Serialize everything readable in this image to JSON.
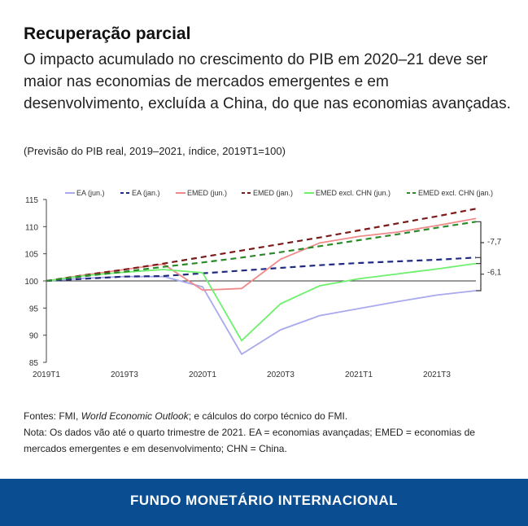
{
  "header": {
    "title": "Recuperação parcial",
    "subtitle": "O impacto acumulado no crescimento do PIB em 2020–21 deve ser maior nas economias de mercados emergentes e em desenvolvimento, excluída a China, do que nas economias avançadas.",
    "units": "(Previsão do PIB real, 2019–2021, índice, 2019T1=100)"
  },
  "chart_data": {
    "type": "line",
    "x": [
      "2019T1",
      "2019T2",
      "2019T3",
      "2019T4",
      "2020T1",
      "2020T2",
      "2020T3",
      "2020T4",
      "2021T1",
      "2021T2",
      "2021T3",
      "2021T4"
    ],
    "x_tick_labels": [
      "2019T1",
      "2019T3",
      "2020T1",
      "2020T3",
      "2021T1",
      "2021T3"
    ],
    "y_ticks": [
      85,
      90,
      95,
      100,
      105,
      110,
      115
    ],
    "ylim": [
      85,
      115
    ],
    "reference_line": 100,
    "legend_position": "top",
    "series": [
      {
        "name": "EA (jun.)",
        "color": "#a9a9ee",
        "dash": false,
        "values": [
          100,
          100.5,
          100.8,
          100.8,
          98.9,
          86.5,
          91.0,
          93.6,
          94.9,
          96.2,
          97.4,
          98.2
        ]
      },
      {
        "name": "EA (jan.)",
        "color": "#1f2a80",
        "dash": true,
        "values": [
          100,
          100.4,
          100.8,
          100.9,
          101.4,
          101.9,
          102.4,
          102.9,
          103.3,
          103.6,
          103.9,
          104.3
        ]
      },
      {
        "name": "EMED (jun.)",
        "color": "#f08a8a",
        "dash": false,
        "values": [
          100,
          101.1,
          102.1,
          103.1,
          98.3,
          98.6,
          104.0,
          107.0,
          108.2,
          109.0,
          110.2,
          111.5
        ]
      },
      {
        "name": "EMED (jan.)",
        "color": "#7a1a1a",
        "dash": true,
        "values": [
          100,
          101.1,
          102.1,
          103.2,
          104.4,
          105.6,
          106.8,
          108.0,
          109.3,
          110.6,
          111.9,
          113.3
        ]
      },
      {
        "name": "EMED excl. CHN (jun.)",
        "color": "#6ef06e",
        "dash": false,
        "values": [
          100,
          101.0,
          101.6,
          102.1,
          101.5,
          89.0,
          95.8,
          99.1,
          100.4,
          101.3,
          102.2,
          103.2
        ]
      },
      {
        "name": "EMED excl. CHN (jan.)",
        "color": "#2a8a2a",
        "dash": true,
        "values": [
          100,
          100.9,
          101.7,
          102.6,
          103.4,
          104.3,
          105.3,
          106.4,
          107.5,
          108.6,
          109.8,
          110.9
        ]
      }
    ],
    "annotations": [
      {
        "label": "-7,7",
        "from": 110.9,
        "to": 103.2
      },
      {
        "label": "-6,1",
        "from": 104.3,
        "to": 98.2
      }
    ]
  },
  "notes": {
    "sources_prefix": "Fontes: FMI, ",
    "sources_italic": "World Economic Outlook",
    "sources_suffix": "; e cálculos do corpo técnico do FMI.",
    "note": "Nota: Os dados vão até o quarto trimestre de 2021. EA = economias avançadas; EMED = economias de mercados emergentes e em desenvolvimento; CHN = China."
  },
  "footer": {
    "label": "FUNDO MONETÁRIO INTERNACIONAL"
  }
}
